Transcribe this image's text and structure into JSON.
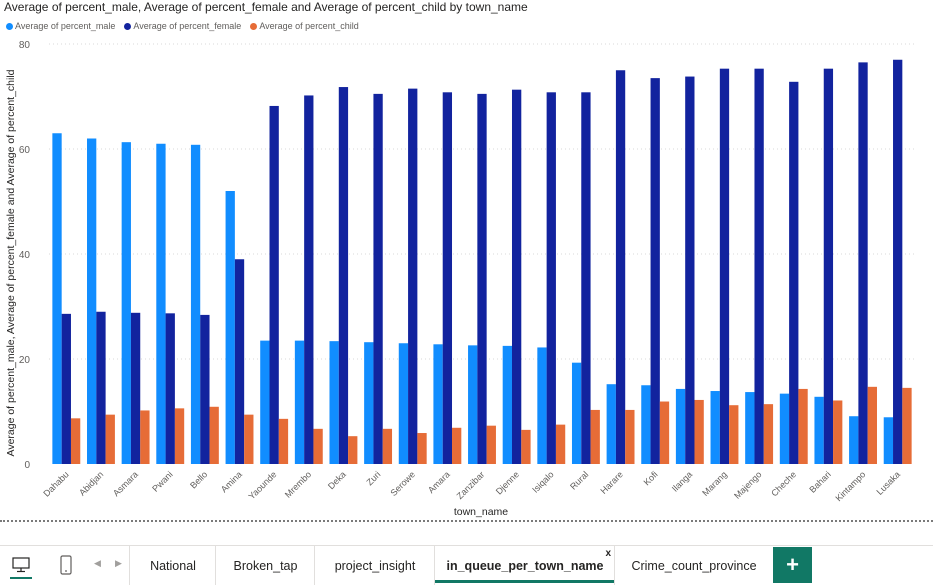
{
  "chart_data": {
    "type": "bar",
    "title": "Average of percent_male, Average of percent_female and Average of percent_child by town_name",
    "xlabel": "town_name",
    "ylabel": "Average of percent_male, Average of percent_female and Average of percent_child",
    "ylim": [
      0,
      80
    ],
    "yticks": [
      "0",
      "20",
      "40",
      "60",
      "80"
    ],
    "grid": true,
    "legend_position": "top-left",
    "categories": [
      "Dahabu",
      "Abidjan",
      "Asmara",
      "Pwani",
      "Bello",
      "Amina",
      "Yaounde",
      "Mrembo",
      "Deka",
      "Zuri",
      "Serowe",
      "Amara",
      "Zanzibar",
      "Djenne",
      "Isiqalo",
      "Rural",
      "Harare",
      "Kofi",
      "Ilanga",
      "Marang",
      "Majengo",
      "Cheche",
      "Bahari",
      "Kintampo",
      "Lusaka"
    ],
    "series": [
      {
        "name": "Average of percent_male",
        "color": "#118dff",
        "values": [
          63,
          62,
          61.3,
          61,
          60.8,
          52,
          23.5,
          23.5,
          23.4,
          23.2,
          23,
          22.8,
          22.6,
          22.5,
          22.2,
          19.3,
          15.2,
          15,
          14.3,
          13.9,
          13.7,
          13.4,
          12.8,
          9.1,
          8.9
        ]
      },
      {
        "name": "Average of percent_female",
        "color": "#12239e",
        "values": [
          28.6,
          29,
          28.8,
          28.7,
          28.4,
          39,
          68.2,
          70.2,
          71.8,
          70.5,
          71.5,
          70.8,
          70.5,
          71.3,
          70.8,
          70.8,
          75,
          73.5,
          73.8,
          75.3,
          75.3,
          72.8,
          75.3,
          76.5,
          77
        ]
      },
      {
        "name": "Average of percent_child",
        "color": "#e66c37",
        "values": [
          8.7,
          9.4,
          10.2,
          10.6,
          10.9,
          9.4,
          8.6,
          6.7,
          5.3,
          6.7,
          5.9,
          6.9,
          7.3,
          6.5,
          7.5,
          10.3,
          10.3,
          11.9,
          12.2,
          11.2,
          11.4,
          14.3,
          12.1,
          14.7,
          14.5
        ]
      }
    ]
  },
  "footer": {
    "tabs": [
      "National",
      "Broken_tap",
      "project_insight",
      "in_queue_per_town_name",
      "Crime_count_province"
    ],
    "active_tab": "in_queue_per_town_name",
    "close_glyph": "x",
    "add_glyph": "+",
    "prev_arrow": "◀",
    "next_arrow": "▶"
  }
}
